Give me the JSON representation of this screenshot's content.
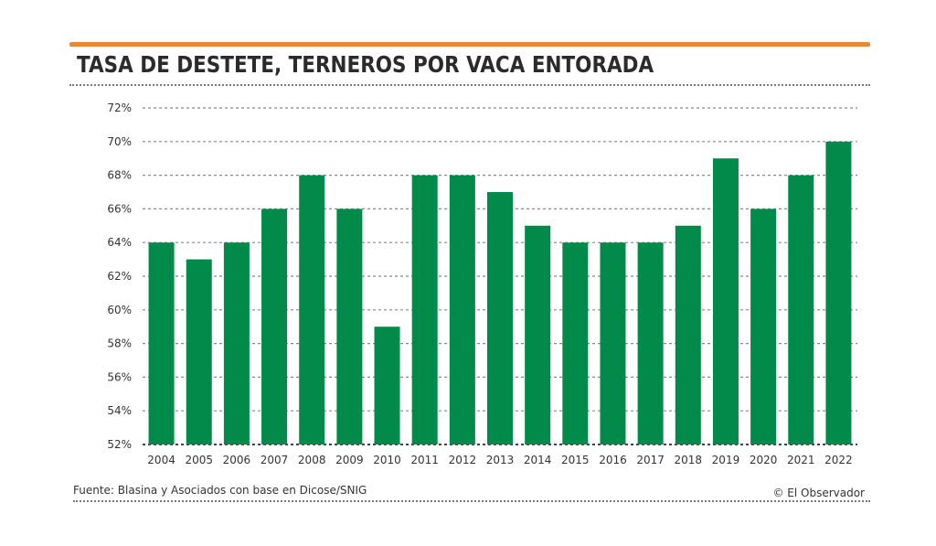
{
  "header": {
    "title": "TASA DE DESTETE, TERNEROS POR VACA ENTORADA"
  },
  "footer": {
    "source": "Fuente: Blasina y Asociados con base en Dicose/SNIG",
    "credit": "© El Observador"
  },
  "colors": {
    "accent": "#e8893a",
    "bar": "#018a4a",
    "text": "#2b2b2b"
  },
  "chart_data": {
    "type": "bar",
    "title": "TASA DE DESTETE, TERNEROS POR VACA ENTORADA",
    "xlabel": "",
    "ylabel": "",
    "ylim": [
      52,
      72
    ],
    "yticks": [
      "52%",
      "54%",
      "56%",
      "58%",
      "60%",
      "62%",
      "64%",
      "66%",
      "68%",
      "70%",
      "72%"
    ],
    "ytick_values": [
      52,
      54,
      56,
      58,
      60,
      62,
      64,
      66,
      68,
      70,
      72
    ],
    "grid": true,
    "categories": [
      "2004",
      "2005",
      "2006",
      "2007",
      "2008",
      "2009",
      "2010",
      "2011",
      "2012",
      "2013",
      "2014",
      "2015",
      "2016",
      "2017",
      "2018",
      "2019",
      "2020",
      "2021",
      "2022"
    ],
    "values": [
      64,
      63,
      64,
      66,
      68,
      66,
      59,
      68,
      68,
      67,
      65,
      64,
      64,
      64,
      65,
      69,
      66,
      68,
      70
    ]
  }
}
